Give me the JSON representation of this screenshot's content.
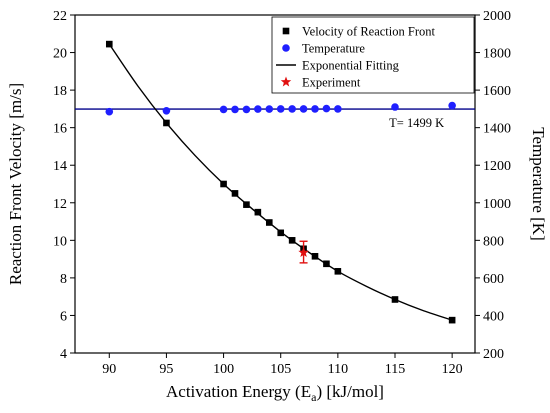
{
  "chart_data": {
    "type": "scatter",
    "x_label_prefix": "Activation Energy (E",
    "x_label_sub": "a",
    "x_label_suffix": ") [kJ/mol]",
    "y_left_label": "Reaction Front Velocity [m/s]",
    "y_right_label": "Temperature [K]",
    "xlim": [
      87,
      122
    ],
    "ylim_left": [
      4,
      22
    ],
    "ylim_right": [
      200,
      2000
    ],
    "x_ticks": [
      90,
      95,
      100,
      105,
      110,
      115,
      120
    ],
    "y_left_ticks": [
      4,
      6,
      8,
      10,
      12,
      14,
      16,
      18,
      20,
      22
    ],
    "y_right_ticks": [
      200,
      400,
      600,
      800,
      1000,
      1200,
      1400,
      1600,
      1800,
      2000
    ],
    "legend_position": "top-right",
    "series": [
      {
        "name": "Velocity of Reaction Front",
        "marker": "square",
        "color": "#000000",
        "axis": "left",
        "x": [
          90,
          95,
          100,
          101,
          102,
          103,
          104,
          105,
          106,
          107,
          108,
          109,
          110,
          115,
          120
        ],
        "y": [
          20.45,
          16.25,
          13.0,
          12.5,
          11.9,
          11.5,
          10.95,
          10.4,
          10.0,
          9.55,
          9.15,
          8.75,
          8.35,
          6.85,
          5.75
        ]
      },
      {
        "name": "Temperature",
        "marker": "circle",
        "color": "#1f1fff",
        "axis": "right",
        "x": [
          90,
          95,
          100,
          101,
          102,
          103,
          104,
          105,
          106,
          107,
          108,
          109,
          110,
          115,
          120
        ],
        "y": [
          1485,
          1490,
          1497,
          1497,
          1497,
          1499,
          1499,
          1500,
          1500,
          1500,
          1500,
          1502,
          1500,
          1510,
          1518
        ]
      },
      {
        "name": "Exponential Fitting",
        "type": "line",
        "color": "#000000",
        "axis": "left",
        "x": [
          90,
          92.5,
          95,
          97.5,
          100,
          102.5,
          105,
          107.5,
          110,
          112.5,
          115,
          117.5,
          120
        ],
        "y": [
          20.45,
          18.22,
          16.25,
          14.52,
          13.0,
          11.68,
          10.45,
          9.35,
          8.35,
          7.55,
          6.85,
          6.25,
          5.75
        ]
      },
      {
        "name": "Experiment",
        "marker": "star",
        "color": "#e01010",
        "axis": "left",
        "x": [
          107
        ],
        "y": [
          9.35
        ],
        "err_low": [
          8.8
        ],
        "err_high": [
          9.95
        ]
      }
    ],
    "reference_line": {
      "axis": "right",
      "y": 1499,
      "color": "#00008b",
      "label": "T= 1499 K"
    }
  }
}
